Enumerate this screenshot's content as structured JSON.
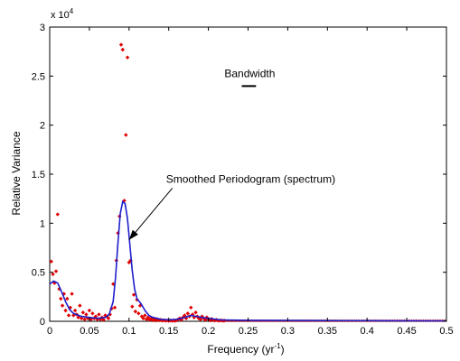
{
  "chart_data": {
    "type": "scatter",
    "xlabel_main": "Frequency (yr",
    "xlabel_sup": "-1",
    "xlabel_end": ")",
    "ylabel": "Relative Variance",
    "y_multiplier_base": "x 10",
    "y_multiplier_exp": "4",
    "xlim": [
      0,
      0.5
    ],
    "ylim": [
      0,
      30000
    ],
    "xticks": [
      0,
      0.05,
      0.1,
      0.15,
      0.2,
      0.25,
      0.3,
      0.35,
      0.4,
      0.45,
      0.5
    ],
    "xtick_labels": [
      "0",
      "0.05",
      "0.1",
      "0.15",
      "0.2",
      "0.25",
      "0.3",
      "0.35",
      "0.4",
      "0.45",
      "0.5"
    ],
    "yticks": [
      0,
      5000,
      10000,
      15000,
      20000,
      25000,
      30000
    ],
    "ytick_labels": [
      "0",
      "0.5",
      "1",
      "1.5",
      "2",
      "2.5",
      "3"
    ],
    "grid": false,
    "annotation": {
      "text": "Smoothed Periodogram (spectrum)",
      "text_at": [
        0.15,
        14500
      ],
      "arrow_to": [
        0.1,
        8300
      ]
    },
    "bandwidth": {
      "label": "Bandwidth",
      "x_range": [
        0.242,
        0.26
      ],
      "y": 25000
    },
    "series": [
      {
        "kind": "points",
        "color": "#e00000",
        "points": [
          [
            0.002,
            6100
          ],
          [
            0.004,
            4800
          ],
          [
            0.006,
            3900
          ],
          [
            0.008,
            5100
          ],
          [
            0.01,
            10900
          ],
          [
            0.012,
            3300
          ],
          [
            0.014,
            2300
          ],
          [
            0.016,
            1600
          ],
          [
            0.018,
            2800
          ],
          [
            0.02,
            1100
          ],
          [
            0.022,
            2300
          ],
          [
            0.024,
            600
          ],
          [
            0.026,
            1400
          ],
          [
            0.028,
            2800
          ],
          [
            0.03,
            600
          ],
          [
            0.032,
            1100
          ],
          [
            0.034,
            700
          ],
          [
            0.036,
            400
          ],
          [
            0.038,
            1600
          ],
          [
            0.04,
            300
          ],
          [
            0.042,
            900
          ],
          [
            0.044,
            200
          ],
          [
            0.046,
            700
          ],
          [
            0.048,
            300
          ],
          [
            0.05,
            1100
          ],
          [
            0.052,
            200
          ],
          [
            0.054,
            800
          ],
          [
            0.056,
            300
          ],
          [
            0.058,
            500
          ],
          [
            0.06,
            200
          ],
          [
            0.062,
            700
          ],
          [
            0.064,
            200
          ],
          [
            0.066,
            400
          ],
          [
            0.068,
            150
          ],
          [
            0.07,
            600
          ],
          [
            0.072,
            500
          ],
          [
            0.074,
            300
          ],
          [
            0.076,
            700
          ],
          [
            0.078,
            1300
          ],
          [
            0.08,
            3800
          ],
          [
            0.082,
            1400
          ],
          [
            0.084,
            6200
          ],
          [
            0.086,
            9000
          ],
          [
            0.088,
            10700
          ],
          [
            0.09,
            28200
          ],
          [
            0.092,
            27700
          ],
          [
            0.094,
            12300
          ],
          [
            0.096,
            19000
          ],
          [
            0.098,
            26900
          ],
          [
            0.1,
            6000
          ],
          [
            0.102,
            6200
          ],
          [
            0.104,
            1500
          ],
          [
            0.106,
            2700
          ],
          [
            0.108,
            1000
          ],
          [
            0.11,
            2200
          ],
          [
            0.112,
            800
          ],
          [
            0.114,
            1600
          ],
          [
            0.116,
            500
          ],
          [
            0.118,
            300
          ],
          [
            0.12,
            600
          ],
          [
            0.122,
            200
          ],
          [
            0.124,
            400
          ],
          [
            0.126,
            150
          ],
          [
            0.128,
            300
          ],
          [
            0.13,
            100
          ],
          [
            0.132,
            250
          ],
          [
            0.134,
            80
          ],
          [
            0.136,
            200
          ],
          [
            0.138,
            100
          ],
          [
            0.14,
            150
          ],
          [
            0.142,
            60
          ],
          [
            0.144,
            120
          ],
          [
            0.146,
            50
          ],
          [
            0.148,
            100
          ],
          [
            0.15,
            40
          ],
          [
            0.152,
            90
          ],
          [
            0.154,
            50
          ],
          [
            0.156,
            80
          ],
          [
            0.158,
            40
          ],
          [
            0.16,
            100
          ],
          [
            0.162,
            200
          ],
          [
            0.164,
            300
          ],
          [
            0.166,
            150
          ],
          [
            0.168,
            400
          ],
          [
            0.17,
            600
          ],
          [
            0.172,
            300
          ],
          [
            0.174,
            800
          ],
          [
            0.176,
            500
          ],
          [
            0.178,
            1400
          ],
          [
            0.18,
            700
          ],
          [
            0.182,
            400
          ],
          [
            0.184,
            900
          ],
          [
            0.186,
            500
          ],
          [
            0.188,
            300
          ],
          [
            0.19,
            200
          ],
          [
            0.192,
            500
          ],
          [
            0.194,
            300
          ],
          [
            0.196,
            150
          ],
          [
            0.198,
            400
          ],
          [
            0.2,
            200
          ],
          [
            0.202,
            100
          ],
          [
            0.204,
            250
          ],
          [
            0.206,
            120
          ],
          [
            0.208,
            80
          ],
          [
            0.21,
            150
          ],
          [
            0.212,
            80
          ],
          [
            0.214,
            60
          ],
          [
            0.216,
            100
          ],
          [
            0.218,
            50
          ],
          [
            0.22,
            70
          ]
        ]
      },
      {
        "kind": "line",
        "color": "#1f1fcc",
        "points": [
          [
            0.0,
            3800
          ],
          [
            0.005,
            4100
          ],
          [
            0.01,
            3900
          ],
          [
            0.015,
            3000
          ],
          [
            0.02,
            2000
          ],
          [
            0.025,
            1200
          ],
          [
            0.03,
            800
          ],
          [
            0.04,
            500
          ],
          [
            0.05,
            400
          ],
          [
            0.06,
            300
          ],
          [
            0.07,
            400
          ],
          [
            0.075,
            700
          ],
          [
            0.08,
            2000
          ],
          [
            0.083,
            4500
          ],
          [
            0.086,
            8000
          ],
          [
            0.089,
            11000
          ],
          [
            0.092,
            12200
          ],
          [
            0.095,
            12000
          ],
          [
            0.098,
            10500
          ],
          [
            0.101,
            7800
          ],
          [
            0.104,
            5200
          ],
          [
            0.107,
            3300
          ],
          [
            0.11,
            2300
          ],
          [
            0.115,
            1800
          ],
          [
            0.12,
            1100
          ],
          [
            0.125,
            600
          ],
          [
            0.13,
            400
          ],
          [
            0.135,
            300
          ],
          [
            0.14,
            200
          ],
          [
            0.15,
            150
          ],
          [
            0.16,
            200
          ],
          [
            0.17,
            400
          ],
          [
            0.178,
            600
          ],
          [
            0.185,
            500
          ],
          [
            0.195,
            350
          ],
          [
            0.205,
            250
          ],
          [
            0.215,
            150
          ],
          [
            0.23,
            120
          ],
          [
            0.25,
            100
          ],
          [
            0.3,
            80
          ],
          [
            0.35,
            70
          ],
          [
            0.4,
            60
          ],
          [
            0.45,
            55
          ],
          [
            0.5,
            50
          ]
        ]
      }
    ]
  }
}
